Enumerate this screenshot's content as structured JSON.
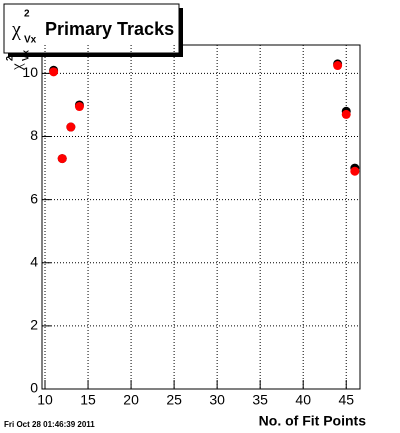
{
  "chart_data": {
    "type": "scatter",
    "title": "Primary Tracks",
    "title_symbol": "χ",
    "title_sup": "2",
    "title_sub": "Vx",
    "ylabel_symbol": "χ",
    "ylabel_sup": "2",
    "ylabel_sub": "Vx",
    "xlabel": "No. of Fit Points",
    "footer": "Fri Oct 28 01:46:39 2011",
    "x": [
      11,
      12,
      13,
      14,
      44,
      45,
      46
    ],
    "series": [
      {
        "color": "#000000",
        "values": [
          10.1,
          7.3,
          8.3,
          9.0,
          10.3,
          8.8,
          7.0
        ]
      },
      {
        "color": "#ff0000",
        "values": [
          10.05,
          7.3,
          8.3,
          8.95,
          10.25,
          8.7,
          6.9
        ]
      }
    ],
    "xlim": [
      9.65,
      46.6
    ],
    "ylim": [
      0,
      10.9
    ],
    "xticks": [
      10,
      15,
      20,
      25,
      30,
      35,
      40,
      45
    ],
    "yticks": [
      0,
      2,
      4,
      6,
      8,
      10
    ],
    "grid": true
  }
}
